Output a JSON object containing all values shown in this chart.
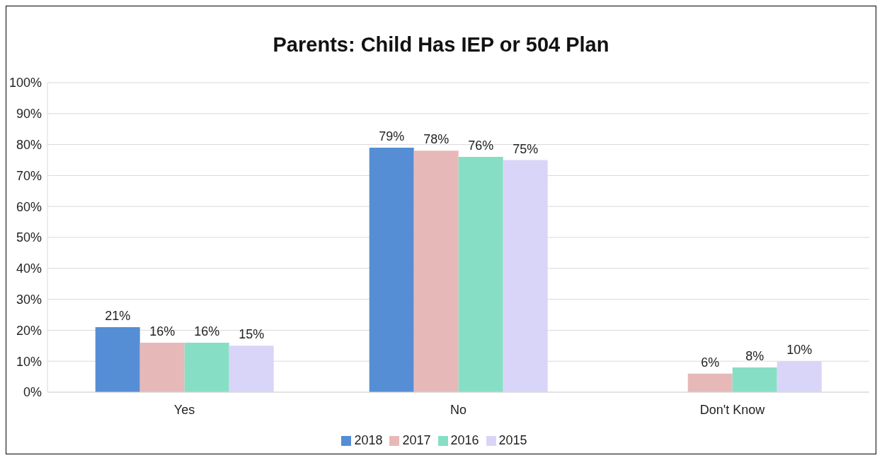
{
  "chart_data": {
    "type": "bar",
    "title": "Parents: Child Has IEP or 504 Plan",
    "categories": [
      "Yes",
      "No",
      "Don't Know"
    ],
    "series": [
      {
        "name": "2018",
        "color": "#558ed5",
        "values": [
          21,
          79,
          null
        ],
        "value_labels": [
          "21%",
          "79%",
          null
        ]
      },
      {
        "name": "2017",
        "color": "#e6b9b8",
        "values": [
          16,
          78,
          6
        ],
        "value_labels": [
          "16%",
          "78%",
          "6%"
        ]
      },
      {
        "name": "2016",
        "color": "#86dfc4",
        "values": [
          16,
          76,
          8
        ],
        "value_labels": [
          "16%",
          "76%",
          "8%"
        ]
      },
      {
        "name": "2015",
        "color": "#d9d5f9",
        "values": [
          15,
          75,
          10
        ],
        "value_labels": [
          "15%",
          "75%",
          "10%"
        ]
      }
    ],
    "ylim": [
      0,
      100
    ],
    "yticks": [
      {
        "value": 0,
        "label": "0%"
      },
      {
        "value": 10,
        "label": "10%"
      },
      {
        "value": 20,
        "label": "20%"
      },
      {
        "value": 30,
        "label": "30%"
      },
      {
        "value": 40,
        "label": "40%"
      },
      {
        "value": 50,
        "label": "50%"
      },
      {
        "value": 60,
        "label": "60%"
      },
      {
        "value": 70,
        "label": "70%"
      },
      {
        "value": 80,
        "label": "80%"
      },
      {
        "value": 90,
        "label": "90%"
      },
      {
        "value": 100,
        "label": "100%"
      }
    ],
    "grid": "y",
    "legend": "bottom"
  }
}
